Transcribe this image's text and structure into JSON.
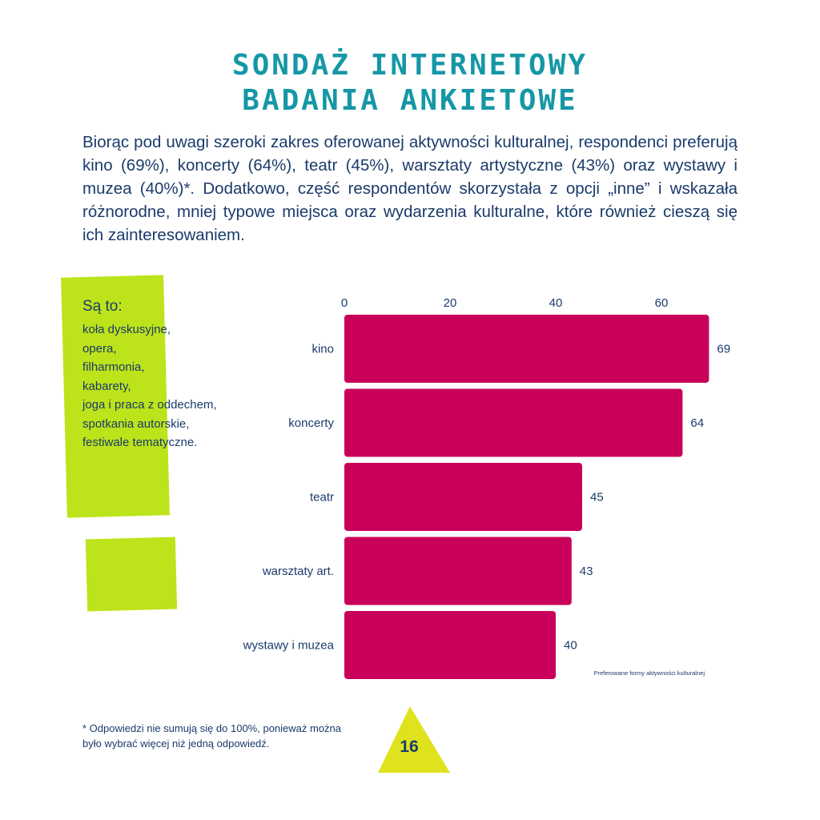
{
  "title": {
    "line1": "SONDAŻ INTERNETOWY",
    "line2": "BADANIA ANKIETOWE"
  },
  "intro": "Biorąc pod uwagi szeroki zakres oferowanej aktywności kulturalnej, respondenci preferują kino (69%), koncerty (64%), teatr (45%), warsztaty artystyczne (43%) oraz wystawy i muzea (40%)*. Dodatkowo, część respondentów skorzystała z opcji „inne” i wskazała różnorodne, mniej typowe miejsca oraz wydarzenia kulturalne, które również cieszą się ich zainteresowaniem.",
  "note": {
    "title": "Są to:",
    "items": [
      "koła dyskusyjne,",
      "opera,",
      "filharmonia,",
      "kabarety,",
      "joga i praca z oddechem,",
      "spotkania autorskie,",
      "festiwale tematyczne."
    ]
  },
  "chart_data": {
    "type": "bar",
    "orientation": "horizontal",
    "categories": [
      "kino",
      "koncerty",
      "teatr",
      "warsztaty art.",
      "wystawy i muzea"
    ],
    "values": [
      69,
      64,
      45,
      43,
      40
    ],
    "xticks": [
      0,
      20,
      40,
      60
    ],
    "xlim": [
      0,
      70
    ],
    "axis_position": "top",
    "caption": "Preferowane formy aktywności kulturalnej",
    "bar_color": "#c8005a",
    "grid": false
  },
  "footnote": "* Odpowiedzi nie sumują się do 100%, ponieważ można było wybrać więcej niż jedną odpowiedź.",
  "page_number": "16",
  "colors": {
    "title": "#1597a6",
    "text": "#1a3b6b",
    "accent_green": "#bde31a",
    "triangle": "#dfe31e",
    "bar": "#c8005a"
  }
}
